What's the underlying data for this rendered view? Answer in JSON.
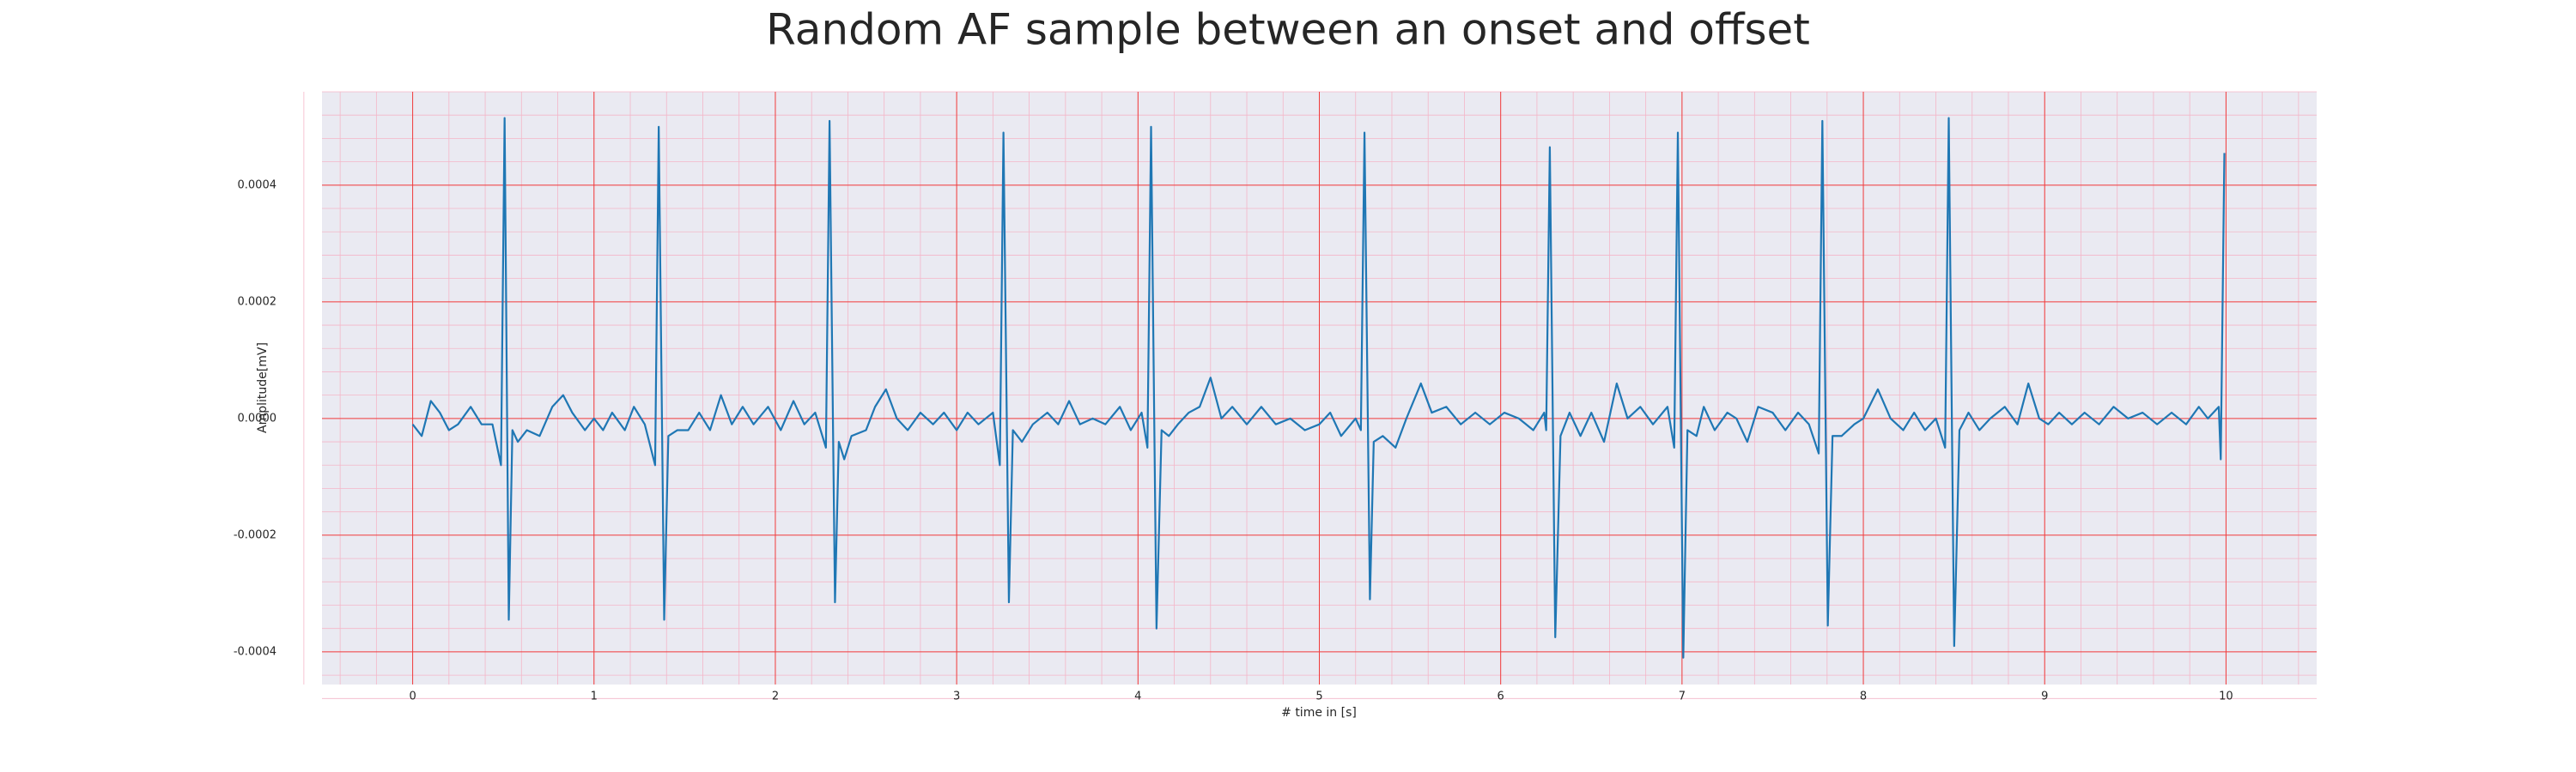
{
  "chart_data": {
    "type": "line",
    "title": "Random AF sample between an onset and offset",
    "xlabel": "# time in [s]",
    "ylabel": "Amplitude[mV]",
    "x": [
      0,
      0.05,
      0.1,
      0.15,
      0.2,
      0.25,
      0.32,
      0.38,
      0.44,
      0.487,
      0.507,
      0.53,
      0.55,
      0.58,
      0.63,
      0.7,
      0.77,
      0.83,
      0.88,
      0.95,
      1.0,
      1.05,
      1.1,
      1.17,
      1.22,
      1.28,
      1.337,
      1.357,
      1.387,
      1.41,
      1.46,
      1.52,
      1.58,
      1.64,
      1.7,
      1.76,
      1.82,
      1.88,
      1.96,
      2.03,
      2.1,
      2.16,
      2.22,
      2.279,
      2.299,
      2.329,
      2.35,
      2.38,
      2.42,
      2.5,
      2.55,
      2.61,
      2.67,
      2.73,
      2.8,
      2.87,
      2.93,
      3.0,
      3.06,
      3.12,
      3.2,
      3.238,
      3.258,
      3.288,
      3.31,
      3.36,
      3.42,
      3.5,
      3.56,
      3.62,
      3.68,
      3.75,
      3.82,
      3.9,
      3.96,
      4.02,
      4.052,
      4.072,
      4.102,
      4.13,
      4.17,
      4.22,
      4.28,
      4.34,
      4.4,
      4.46,
      4.52,
      4.6,
      4.68,
      4.76,
      4.84,
      4.92,
      5.0,
      5.06,
      5.12,
      5.2,
      5.229,
      5.249,
      5.279,
      5.3,
      5.35,
      5.42,
      5.48,
      5.56,
      5.62,
      5.7,
      5.78,
      5.86,
      5.94,
      6.02,
      6.1,
      6.18,
      6.24,
      6.251,
      6.271,
      6.301,
      6.33,
      6.38,
      6.44,
      6.5,
      6.57,
      6.64,
      6.7,
      6.77,
      6.84,
      6.92,
      6.957,
      6.977,
      7.007,
      7.03,
      7.08,
      7.12,
      7.18,
      7.25,
      7.3,
      7.36,
      7.42,
      7.5,
      7.57,
      7.64,
      7.7,
      7.754,
      7.774,
      7.804,
      7.83,
      7.88,
      7.95,
      8.0,
      8.08,
      8.15,
      8.22,
      8.28,
      8.34,
      8.4,
      8.451,
      8.471,
      8.501,
      8.53,
      8.58,
      8.64,
      8.7,
      8.78,
      8.85,
      8.91,
      8.97,
      9.02,
      9.08,
      9.15,
      9.22,
      9.3,
      9.38,
      9.46,
      9.54,
      9.62,
      9.7,
      9.78,
      9.85,
      9.9,
      9.96,
      9.971,
      9.991
    ],
    "series": [
      {
        "color": "#1f77b4",
        "values": [
          -1e-05,
          -3e-05,
          3e-05,
          1e-05,
          -2e-05,
          -1e-05,
          2e-05,
          -1e-05,
          -1e-05,
          -8e-05,
          0.000515,
          -0.000345,
          -2e-05,
          -4e-05,
          -2e-05,
          -3e-05,
          2e-05,
          4e-05,
          1e-05,
          -2e-05,
          0,
          -2e-05,
          1e-05,
          -2e-05,
          2e-05,
          -1e-05,
          -8e-05,
          0.0005,
          -0.000345,
          -3e-05,
          -2e-05,
          -2e-05,
          1e-05,
          -2e-05,
          4e-05,
          -1e-05,
          2e-05,
          -1e-05,
          2e-05,
          -2e-05,
          3e-05,
          -1e-05,
          1e-05,
          -5e-05,
          0.00051,
          -0.000315,
          -4e-05,
          -7e-05,
          -3e-05,
          -2e-05,
          2e-05,
          5e-05,
          0,
          -2e-05,
          1e-05,
          -1e-05,
          1e-05,
          -2e-05,
          1e-05,
          -1e-05,
          1e-05,
          -8e-05,
          0.00049,
          -0.000315,
          -2e-05,
          -4e-05,
          -1e-05,
          1e-05,
          -1e-05,
          3e-05,
          -1e-05,
          0,
          -1e-05,
          2e-05,
          -2e-05,
          1e-05,
          -5e-05,
          0.0005,
          -0.00036,
          -2e-05,
          -3e-05,
          -1e-05,
          1e-05,
          2e-05,
          7e-05,
          0,
          2e-05,
          -1e-05,
          2e-05,
          -1e-05,
          0,
          -2e-05,
          -1e-05,
          1e-05,
          -3e-05,
          0,
          -2e-05,
          0.00049,
          -0.00031,
          -4e-05,
          -3e-05,
          -5e-05,
          0,
          6e-05,
          1e-05,
          2e-05,
          -1e-05,
          1e-05,
          -1e-05,
          1e-05,
          0,
          -2e-05,
          1e-05,
          -2e-05,
          0.000465,
          -0.000375,
          -3e-05,
          1e-05,
          -3e-05,
          1e-05,
          -4e-05,
          6e-05,
          0,
          2e-05,
          -1e-05,
          2e-05,
          -5e-05,
          0.00049,
          -0.00041,
          -2e-05,
          -3e-05,
          2e-05,
          -2e-05,
          1e-05,
          0,
          -4e-05,
          2e-05,
          1e-05,
          -2e-05,
          1e-05,
          -1e-05,
          -6e-05,
          0.00051,
          -0.000355,
          -3e-05,
          -3e-05,
          -1e-05,
          0,
          5e-05,
          0,
          -2e-05,
          1e-05,
          -2e-05,
          0,
          -5e-05,
          0.000515,
          -0.00039,
          -2e-05,
          1e-05,
          -2e-05,
          0,
          2e-05,
          -1e-05,
          6e-05,
          0,
          -1e-05,
          1e-05,
          -1e-05,
          1e-05,
          -1e-05,
          2e-05,
          0,
          1e-05,
          -1e-05,
          1e-05,
          -1e-05,
          2e-05,
          0,
          2e-05,
          -7e-05,
          0.000455
        ]
      }
    ],
    "xlim": [
      -0.5,
      10.5
    ],
    "xticks": [
      0,
      1,
      2,
      3,
      4,
      5,
      6,
      7,
      8,
      9,
      10
    ],
    "ylim": [
      -0.000456,
      0.00056
    ],
    "yticks": [
      -0.0004,
      -0.0002,
      {
        "value": 0,
        "label": "0.0000"
      },
      0.0002,
      0.0004
    ],
    "grid": true,
    "minor_grid": true
  }
}
